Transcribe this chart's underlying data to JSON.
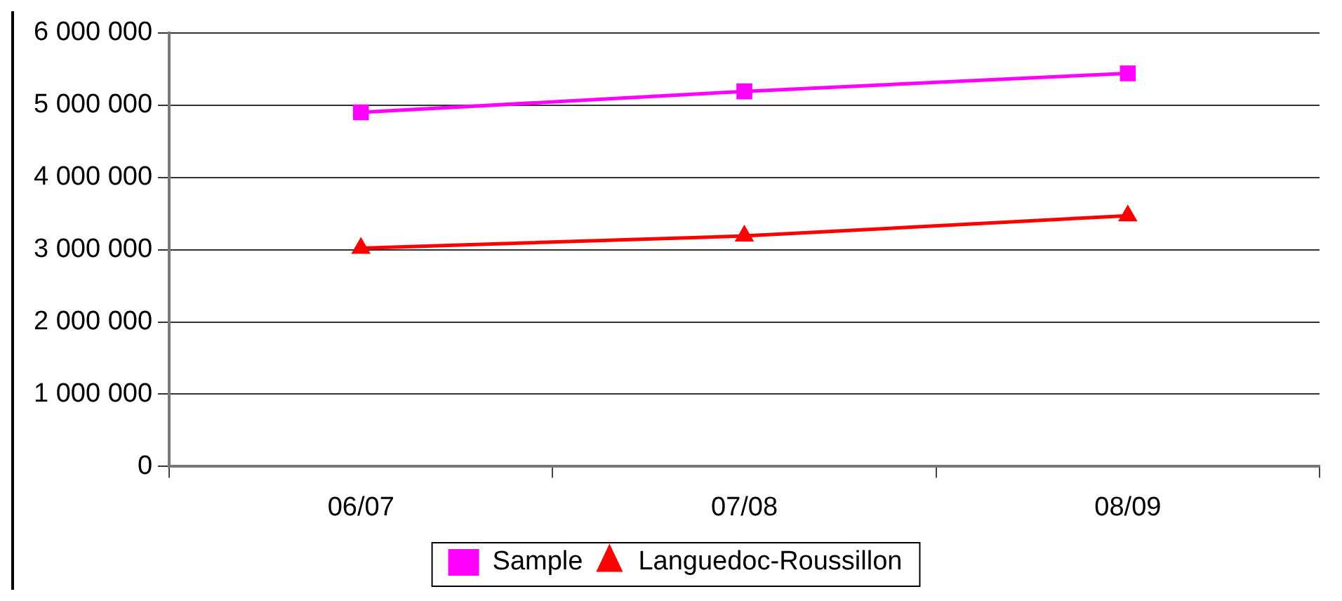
{
  "chart_data": {
    "type": "line",
    "categories": [
      "06/07",
      "07/08",
      "08/09"
    ],
    "series": [
      {
        "name": "Sample",
        "color": "#ff00ff",
        "marker": "square",
        "values": [
          4900000,
          5190000,
          5440000
        ]
      },
      {
        "name": "Languedoc-Roussillon",
        "color": "#ff0000",
        "marker": "triangle",
        "values": [
          3020000,
          3190000,
          3470000
        ]
      }
    ],
    "ylim": [
      0,
      6000000
    ],
    "yticks": [
      0,
      1000000,
      2000000,
      3000000,
      4000000,
      5000000,
      6000000
    ],
    "grid": "y",
    "legend": "bottom",
    "line_style": "solid"
  }
}
